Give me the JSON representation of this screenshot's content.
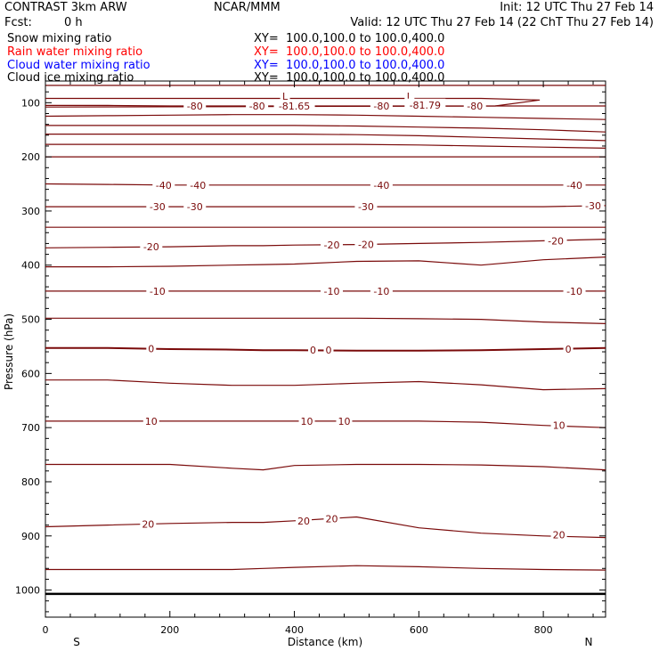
{
  "header": {
    "title": "CONTRAST  3km ARW",
    "center": "NCAR/MMM",
    "init": "Init: 12 UTC Thu 27 Feb 14",
    "fcst_label": "Fcst:",
    "fcst_value": "0 h",
    "valid": "Valid: 12 UTC Thu 27 Feb 14 (22 ChT Thu 27 Feb 14)"
  },
  "legend": [
    {
      "name": "Snow mixing ratio",
      "xy": "XY=  100.0,100.0 to 100.0,400.0",
      "color": "#000000"
    },
    {
      "name": "Rain water mixing ratio",
      "xy": "XY=  100.0,100.0 to 100.0,400.0",
      "color": "#ff0000"
    },
    {
      "name": "Cloud water mixing ratio",
      "xy": "XY=  100.0,100.0 to 100.0,400.0",
      "color": "#0000ff"
    },
    {
      "name": "Cloud ice mixing ratio",
      "xy": "XY=  100.0,100.0 to 100.0,400.0",
      "color": "#000000"
    }
  ],
  "colors": {
    "contour": "#7a0a0a",
    "axis": "#000000"
  },
  "chart_data": {
    "type": "contour",
    "xlabel": "Distance (km)",
    "ylabel": "Pressure (hPa)",
    "xlim": [
      0,
      900
    ],
    "ylim": [
      1050,
      60
    ],
    "x_ticks": [
      0,
      200,
      400,
      600,
      800
    ],
    "y_ticks": [
      100,
      200,
      300,
      400,
      500,
      600,
      700,
      800,
      900,
      1000
    ],
    "x_end_labels": {
      "left": "S",
      "right": "N"
    },
    "x": [
      0,
      100,
      200,
      300,
      350,
      400,
      500,
      600,
      700,
      800,
      900
    ],
    "contours": [
      {
        "label": "",
        "p": [
          68,
          68,
          68,
          68,
          68,
          68,
          68,
          68,
          68,
          68,
          68
        ]
      },
      {
        "label": "L",
        "p": [
          92,
          92,
          92,
          92,
          92,
          92,
          92,
          92,
          92,
          95,
          95
        ],
        "end_x": 780
      },
      {
        "label": "-80",
        "p": [
          105,
          105,
          106,
          106,
          106,
          106,
          106,
          106,
          106,
          106,
          106
        ]
      },
      {
        "label": "",
        "p": [
          125,
          124,
          123,
          122,
          122,
          122,
          123,
          125,
          127,
          129,
          131
        ]
      },
      {
        "label": "",
        "p": [
          142,
          142,
          142,
          142,
          142,
          142,
          143,
          145,
          147,
          150,
          154
        ]
      },
      {
        "label": "",
        "p": [
          158,
          158,
          158,
          158,
          158,
          158,
          159,
          161,
          164,
          167,
          170
        ]
      },
      {
        "label": "",
        "p": [
          177,
          177,
          177,
          177,
          177,
          177,
          177,
          178,
          180,
          182,
          184
        ]
      },
      {
        "label": "",
        "p": [
          200,
          200,
          200,
          200,
          200,
          200,
          200,
          200,
          200,
          200,
          200
        ]
      },
      {
        "label": "-40",
        "p": [
          250,
          251,
          252,
          252,
          252,
          252,
          252,
          252,
          252,
          252,
          252
        ]
      },
      {
        "label": "-30",
        "p": [
          292,
          292,
          292,
          292,
          292,
          292,
          292,
          292,
          292,
          292,
          290
        ]
      },
      {
        "label": "",
        "p": [
          330,
          330,
          330,
          330,
          330,
          330,
          330,
          330,
          330,
          330,
          330
        ]
      },
      {
        "label": "-20",
        "p": [
          368,
          367,
          366,
          364,
          364,
          363,
          362,
          360,
          358,
          355,
          352
        ]
      },
      {
        "label": "",
        "p": [
          403,
          403,
          402,
          400,
          399,
          398,
          393,
          392,
          400,
          390,
          385
        ]
      },
      {
        "label": "-10",
        "p": [
          448,
          448,
          448,
          448,
          448,
          448,
          448,
          448,
          448,
          448,
          448
        ]
      },
      {
        "label": "",
        "p": [
          498,
          498,
          498,
          498,
          498,
          498,
          498,
          499,
          500,
          505,
          508
        ]
      },
      {
        "label": "0",
        "p": [
          553,
          553,
          555,
          556,
          557,
          557,
          558,
          558,
          557,
          555,
          553
        ]
      },
      {
        "label": "",
        "p": [
          612,
          612,
          618,
          622,
          622,
          622,
          618,
          615,
          621,
          630,
          628
        ]
      },
      {
        "label": "10",
        "p": [
          688,
          688,
          688,
          688,
          688,
          688,
          688,
          688,
          690,
          696,
          700
        ]
      },
      {
        "label": "",
        "p": [
          768,
          768,
          768,
          775,
          778,
          770,
          768,
          768,
          769,
          772,
          778
        ]
      },
      {
        "label": "20",
        "p": [
          883,
          880,
          877,
          875,
          875,
          872,
          865,
          885,
          895,
          900,
          903
        ]
      },
      {
        "label": "",
        "p": [
          962,
          962,
          962,
          962,
          960,
          958,
          955,
          957,
          960,
          962,
          963
        ]
      }
    ],
    "labels": [
      {
        "text": "L",
        "x": 385,
        "p": 88
      },
      {
        "text": "L",
        "x": 585,
        "p": 88
      },
      {
        "text": "-80",
        "x": 240,
        "p": 106
      },
      {
        "text": "-80",
        "x": 340,
        "p": 106
      },
      {
        "text": "-81.65",
        "x": 400,
        "p": 106
      },
      {
        "text": "-80",
        "x": 540,
        "p": 106
      },
      {
        "text": "-81.79",
        "x": 610,
        "p": 104
      },
      {
        "text": "-80",
        "x": 690,
        "p": 106
      },
      {
        "text": "-40",
        "x": 190,
        "p": 252
      },
      {
        "text": "-40",
        "x": 245,
        "p": 252
      },
      {
        "text": "-40",
        "x": 540,
        "p": 252
      },
      {
        "text": "-40",
        "x": 850,
        "p": 252
      },
      {
        "text": "-30",
        "x": 180,
        "p": 292
      },
      {
        "text": "-30",
        "x": 240,
        "p": 292
      },
      {
        "text": "-30",
        "x": 515,
        "p": 292
      },
      {
        "text": "-30",
        "x": 880,
        "p": 290
      },
      {
        "text": "-20",
        "x": 170,
        "p": 366
      },
      {
        "text": "-20",
        "x": 460,
        "p": 363
      },
      {
        "text": "-20",
        "x": 515,
        "p": 362
      },
      {
        "text": "-20",
        "x": 820,
        "p": 355
      },
      {
        "text": "-10",
        "x": 180,
        "p": 448
      },
      {
        "text": "-10",
        "x": 460,
        "p": 448
      },
      {
        "text": "-10",
        "x": 540,
        "p": 448
      },
      {
        "text": "-10",
        "x": 850,
        "p": 448
      },
      {
        "text": "0",
        "x": 170,
        "p": 554
      },
      {
        "text": "0",
        "x": 430,
        "p": 557
      },
      {
        "text": "0",
        "x": 455,
        "p": 557
      },
      {
        "text": "0",
        "x": 840,
        "p": 555
      },
      {
        "text": "10",
        "x": 170,
        "p": 688
      },
      {
        "text": "10",
        "x": 420,
        "p": 688
      },
      {
        "text": "10",
        "x": 480,
        "p": 688
      },
      {
        "text": "10",
        "x": 825,
        "p": 696
      },
      {
        "text": "20",
        "x": 165,
        "p": 878
      },
      {
        "text": "20",
        "x": 415,
        "p": 872
      },
      {
        "text": "20",
        "x": 460,
        "p": 868
      },
      {
        "text": "20",
        "x": 825,
        "p": 898
      }
    ],
    "thick_line": {
      "label": "",
      "p": 1007,
      "color": "#000000"
    }
  }
}
